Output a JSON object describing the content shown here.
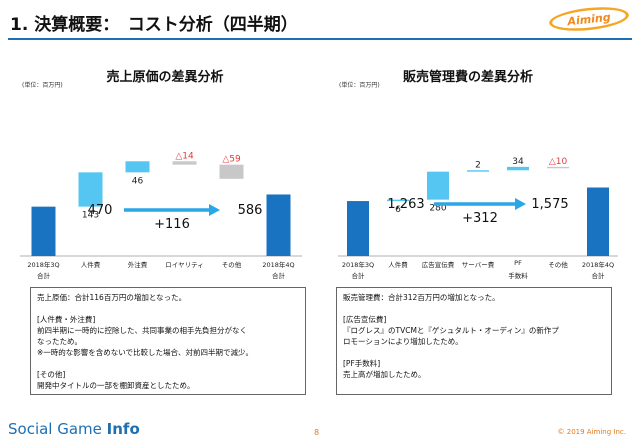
{
  "header": {
    "title": "1. 決算概要：　コスト分析（四半期）",
    "logo_text": "Aiming"
  },
  "colors": {
    "dark_bar": "#1a73c0",
    "light_bar": "#55c6f2",
    "gray_bar": "#c8c8c8",
    "negative": "#e23b3b",
    "arrow": "#2aa7e6",
    "header_line": "#1f6fb2",
    "footer_accent": "#e07a1f"
  },
  "left": {
    "title": "売上原価の差異分析",
    "unit": "(単位：百万円)",
    "start_value": "470",
    "delta": "+116",
    "end_value": "586",
    "x_labels": [
      {
        "line1": "2018年3Q",
        "line2": "合計"
      },
      {
        "line1": "人件費",
        "line2": ""
      },
      {
        "line1": "外注費",
        "line2": ""
      },
      {
        "line1": "ロイヤリティ",
        "line2": ""
      },
      {
        "line1": "その他",
        "line2": ""
      },
      {
        "line1": "2018年4Q",
        "line2": "合計"
      }
    ],
    "note": [
      "売上原価：合計116百万円の増加となった。",
      "",
      "[人件費・外注費]",
      "前四半期に一時的に控除した、共同事業の相手先負担分がなく",
      "なったため。",
      "※一時的な影響を含めないで比較した場合、対前四半期で減少。",
      "",
      "[その他]",
      "開発中タイトルの一部を棚卸資産としたため。"
    ]
  },
  "right": {
    "title": "販売管理費の差異分析",
    "unit": "(単位：百万円)",
    "start_value": "1,263",
    "delta": "+312",
    "end_value": "1,575",
    "x_labels": [
      {
        "line1": "2018年3Q",
        "line2": "合計"
      },
      {
        "line1": "人件費",
        "line2": ""
      },
      {
        "line1": "広告宣伝費",
        "line2": ""
      },
      {
        "line1": "サーバー費",
        "line2": ""
      },
      {
        "line1": "PF",
        "line2": "手数料"
      },
      {
        "line1": "その他",
        "line2": ""
      },
      {
        "line1": "2018年4Q",
        "line2": "合計"
      }
    ],
    "note": [
      "販売管理費：合計312百万円の増加となった。",
      "",
      "[広告宣伝費]",
      "『ログレス』のTVCMと『ゲシュタルト・オーディン』の新作プ",
      "ロモーションにより増加したため。",
      "",
      "[PF手数料]",
      "売上高が増加したため。"
    ]
  },
  "chart_data": [
    {
      "type": "bar",
      "subtype": "waterfall",
      "title": "売上原価の差異分析",
      "unit": "(単位：百万円)",
      "categories": [
        "2018年3Q 合計",
        "人件費",
        "外注費",
        "ロイヤリティ",
        "その他",
        "2018年4Q 合計"
      ],
      "values": [
        470,
        143,
        46,
        -14,
        -59,
        586
      ],
      "data_labels": [
        "",
        "143",
        "46",
        "△14",
        "△59",
        ""
      ],
      "bar_kinds": [
        "total",
        "increase",
        "increase",
        "decrease",
        "decrease",
        "total"
      ]
    },
    {
      "type": "bar",
      "subtype": "waterfall",
      "title": "販売管理費の差異分析",
      "unit": "(単位：百万円)",
      "categories": [
        "2018年3Q 合計",
        "人件費",
        "広告宣伝費",
        "サーバー費",
        "PF 手数料",
        "その他",
        "2018年4Q 合計"
      ],
      "values": [
        1263,
        6,
        280,
        2,
        34,
        -10,
        1575
      ],
      "data_labels": [
        "",
        "6",
        "280",
        "2",
        "34",
        "△10",
        ""
      ],
      "bar_kinds": [
        "total",
        "increase",
        "increase",
        "increase",
        "increase",
        "decrease",
        "total"
      ]
    }
  ],
  "footer": {
    "brand_regular": "Social Game ",
    "brand_bold": "Info",
    "page_number": "8",
    "copyright": "© 2019 Aiming Inc."
  }
}
